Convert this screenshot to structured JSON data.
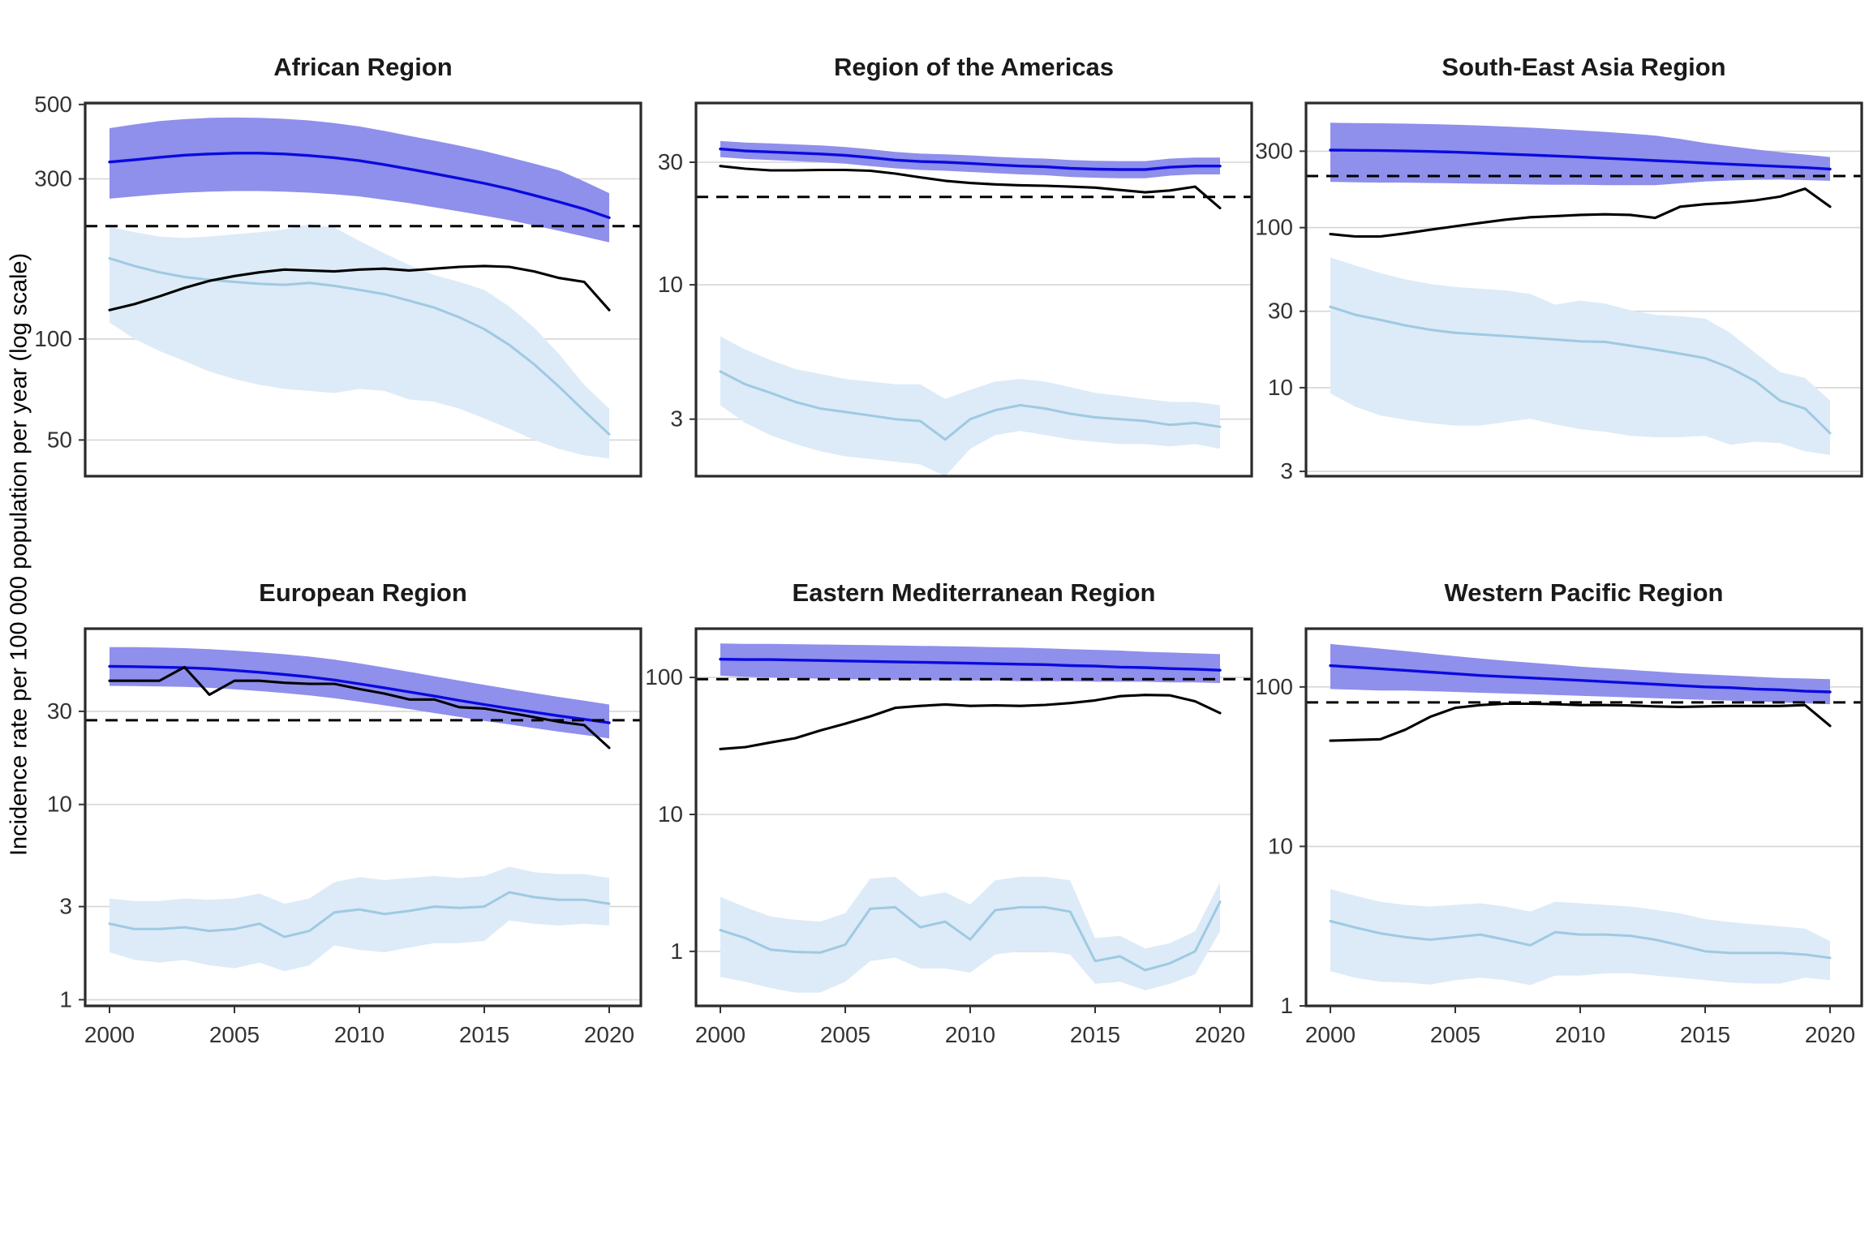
{
  "figure": {
    "ylabel": "Incidence rate per 100 000 population per year (log scale)"
  },
  "colors": {
    "blue_line": "#0A0ADF",
    "blue_band": "#8F8FEC",
    "lightblue_line": "#9FC9E2",
    "lightblue_band": "#DCEBF7",
    "black_line": "#000000",
    "dashed_line": "#000000",
    "gridline": "#D6D6D6",
    "panel_border": "#2A2A2A",
    "tick_text": "#333333"
  },
  "chart_data": {
    "type": "line",
    "x": [
      2000,
      2001,
      2002,
      2003,
      2004,
      2005,
      2006,
      2007,
      2008,
      2009,
      2010,
      2011,
      2012,
      2013,
      2014,
      2015,
      2016,
      2017,
      2018,
      2019,
      2020
    ],
    "x_ticks": [
      2000,
      2005,
      2010,
      2015,
      2020
    ],
    "ylabel": "Incidence rate per 100 000 population per year (log scale)",
    "log_scale": true,
    "legend": "none",
    "panels": [
      {
        "title": "African Region",
        "ylim": [
          39,
          505
        ],
        "yticks": [
          500,
          300,
          100,
          50
        ],
        "dashed_y": 217,
        "blue": [
          337,
          342,
          348,
          353,
          356,
          358,
          358,
          356,
          352,
          347,
          340,
          331,
          321,
          311,
          301,
          291,
          280,
          268,
          256,
          244,
          230
        ],
        "blue_upper": [
          425,
          436,
          446,
          452,
          456,
          457,
          456,
          453,
          448,
          440,
          430,
          417,
          403,
          390,
          377,
          363,
          348,
          333,
          318,
          295,
          272
        ],
        "blue_lower": [
          262,
          266,
          270,
          273,
          275,
          276,
          276,
          275,
          273,
          270,
          266,
          260,
          254,
          247,
          240,
          233,
          226,
          218,
          210,
          202,
          194
        ],
        "light": [
          174,
          165,
          158,
          153,
          150,
          148,
          146,
          145,
          147,
          144,
          140,
          136,
          130,
          124,
          116,
          107,
          96,
          84,
          72,
          61,
          52
        ],
        "light_upper": [
          216,
          208,
          202,
          200,
          202,
          205,
          208,
          212,
          220,
          215,
          196,
          180,
          166,
          155,
          148,
          140,
          125,
          108,
          90,
          73,
          62
        ],
        "light_lower": [
          112,
          100,
          92,
          86,
          80,
          76,
          73,
          71,
          70,
          69,
          71,
          70,
          66,
          65,
          62,
          58,
          54,
          50,
          47,
          45,
          44
        ],
        "black": [
          122,
          127,
          134,
          142,
          149,
          154,
          158,
          161,
          160,
          159,
          161,
          162,
          160,
          162,
          164,
          165,
          164,
          159,
          152,
          148,
          122
        ]
      },
      {
        "title": "Region of the Americas",
        "ylim": [
          1.8,
          51
        ],
        "yticks": [
          30,
          10,
          3
        ],
        "dashed_y": 22,
        "blue": [
          33.8,
          33.2,
          32.9,
          32.6,
          32.3,
          31.9,
          31.3,
          30.6,
          30.2,
          30.0,
          29.7,
          29.3,
          29.0,
          28.8,
          28.4,
          28.2,
          28.1,
          28.1,
          28.7,
          29.0,
          29.0
        ],
        "blue_upper": [
          36.3,
          35.8,
          35.5,
          35.2,
          34.9,
          34.4,
          33.7,
          32.9,
          32.4,
          32.2,
          31.9,
          31.5,
          31.2,
          31.0,
          30.6,
          30.4,
          30.3,
          30.3,
          31.0,
          31.3,
          31.3
        ],
        "blue_lower": [
          31.4,
          30.9,
          30.6,
          30.3,
          30.0,
          29.6,
          29.0,
          28.4,
          28.0,
          27.8,
          27.5,
          27.2,
          26.9,
          26.7,
          26.3,
          26.1,
          26.0,
          26.0,
          26.6,
          26.9,
          26.9
        ],
        "light": [
          4.6,
          4.1,
          3.8,
          3.5,
          3.3,
          3.2,
          3.1,
          3.0,
          2.95,
          2.5,
          3.0,
          3.25,
          3.4,
          3.3,
          3.15,
          3.05,
          3.0,
          2.95,
          2.85,
          2.9,
          2.8
        ],
        "light_upper": [
          6.3,
          5.6,
          5.1,
          4.7,
          4.5,
          4.3,
          4.2,
          4.1,
          4.1,
          3.6,
          3.9,
          4.2,
          4.3,
          4.2,
          4.0,
          3.8,
          3.7,
          3.6,
          3.5,
          3.5,
          3.4
        ],
        "light_lower": [
          3.4,
          2.9,
          2.6,
          2.4,
          2.25,
          2.15,
          2.1,
          2.05,
          2.0,
          1.8,
          2.3,
          2.6,
          2.7,
          2.6,
          2.5,
          2.45,
          2.4,
          2.4,
          2.35,
          2.4,
          2.3
        ],
        "black": [
          29.0,
          28.3,
          27.9,
          27.9,
          28.0,
          28.0,
          27.8,
          27.1,
          26.2,
          25.4,
          24.9,
          24.6,
          24.4,
          24.3,
          24.1,
          23.9,
          23.4,
          22.9,
          23.3,
          24.1,
          19.9
        ]
      },
      {
        "title": "South-East Asia Region",
        "ylim": [
          2.8,
          600
        ],
        "yticks": [
          300,
          100,
          30,
          10,
          3
        ],
        "dashed_y": 210,
        "blue": [
          305,
          304,
          303,
          301,
          299,
          296,
          292,
          288,
          284,
          280,
          276,
          271,
          267,
          262,
          258,
          253,
          249,
          245,
          241,
          237,
          232
        ],
        "blue_upper": [
          452,
          450,
          448,
          446,
          443,
          439,
          434,
          428,
          421,
          413,
          405,
          396,
          386,
          376,
          358,
          338,
          322,
          308,
          296,
          286,
          276
        ],
        "blue_lower": [
          193,
          192,
          191,
          191,
          190,
          189,
          188,
          187,
          186,
          185,
          185,
          184,
          184,
          184,
          189,
          194,
          197,
          199,
          200,
          198,
          196
        ],
        "light": [
          32,
          28.5,
          26.5,
          24.5,
          23,
          22,
          21.5,
          21,
          20.5,
          20,
          19.5,
          19.3,
          18.3,
          17.3,
          16.3,
          15.3,
          13.3,
          11,
          8.3,
          7.4,
          5.2
        ],
        "light_upper": [
          65,
          58,
          52,
          47.5,
          44.5,
          42.5,
          41.5,
          40.5,
          38.5,
          33,
          35,
          33.5,
          30.5,
          28.5,
          28,
          27,
          22,
          16.5,
          12.5,
          11.5,
          8.3
        ],
        "light_lower": [
          9.2,
          7.6,
          6.7,
          6.3,
          6.0,
          5.8,
          5.8,
          6.1,
          6.4,
          5.9,
          5.5,
          5.3,
          5.0,
          4.9,
          4.9,
          5.0,
          4.4,
          4.6,
          4.5,
          4.0,
          3.8
        ],
        "black": [
          91,
          88,
          88,
          92,
          97,
          102,
          107,
          112,
          116,
          118,
          120,
          121,
          120,
          115,
          135,
          140,
          143,
          148,
          156,
          175,
          135
        ]
      },
      {
        "title": "European Region",
        "ylim": [
          0.93,
          79.5
        ],
        "yticks": [
          30,
          10,
          3,
          1
        ],
        "dashed_y": 27,
        "blue": [
          51,
          50.8,
          50.5,
          50.2,
          49.6,
          48.6,
          47.5,
          46.3,
          45.0,
          43.4,
          41.5,
          39.6,
          37.7,
          35.9,
          34.1,
          32.5,
          31.0,
          29.7,
          28.4,
          27.3,
          26.2
        ],
        "blue_upper": [
          64,
          64,
          63.6,
          63.2,
          62.4,
          61.4,
          60.2,
          58.8,
          57.2,
          55.2,
          52.8,
          50.3,
          47.8,
          45.4,
          43.1,
          41.0,
          39.0,
          37.2,
          35.5,
          34.0,
          32.5
        ],
        "blue_lower": [
          40.5,
          40.4,
          40.2,
          40.0,
          39.6,
          38.9,
          38.1,
          37.2,
          36.2,
          35.0,
          33.6,
          32.2,
          30.8,
          29.4,
          28.1,
          26.8,
          25.7,
          24.6,
          23.6,
          22.7,
          21.8
        ],
        "light": [
          2.45,
          2.3,
          2.3,
          2.35,
          2.25,
          2.3,
          2.45,
          2.1,
          2.25,
          2.8,
          2.9,
          2.75,
          2.85,
          3.0,
          2.95,
          3.0,
          3.55,
          3.35,
          3.25,
          3.25,
          3.1
        ],
        "light_upper": [
          3.3,
          3.2,
          3.2,
          3.3,
          3.25,
          3.3,
          3.5,
          3.1,
          3.3,
          4.0,
          4.25,
          4.1,
          4.2,
          4.3,
          4.2,
          4.3,
          4.8,
          4.5,
          4.4,
          4.4,
          4.2
        ],
        "light_lower": [
          1.75,
          1.6,
          1.55,
          1.6,
          1.5,
          1.45,
          1.55,
          1.4,
          1.5,
          1.9,
          1.8,
          1.75,
          1.85,
          1.95,
          1.95,
          2.0,
          2.55,
          2.45,
          2.4,
          2.45,
          2.4
        ],
        "black": [
          43,
          43,
          43,
          50.5,
          36.5,
          43,
          43,
          42,
          41.5,
          41.5,
          39,
          37,
          34.5,
          34.5,
          31.5,
          31,
          29.5,
          28,
          26.5,
          25.5,
          19.5
        ]
      },
      {
        "title": "Eastern Mediterranean Region",
        "ylim": [
          0.4,
          227
        ],
        "yticks": [
          100,
          10,
          1
        ],
        "dashed_y": 97,
        "blue": [
          136,
          135,
          135,
          134,
          133,
          132,
          131,
          130,
          129,
          128,
          127,
          126,
          125,
          124,
          122,
          121,
          119,
          118,
          116,
          115,
          113
        ],
        "blue_upper": [
          177,
          176,
          176,
          175,
          174,
          173,
          172,
          171,
          170,
          169,
          168,
          166,
          165,
          163,
          161,
          159,
          157,
          154,
          152,
          150,
          148
        ],
        "blue_lower": [
          103,
          101,
          100,
          99,
          98,
          97,
          97,
          96,
          96,
          95,
          95,
          95,
          94,
          94,
          94,
          93,
          93,
          93,
          92,
          92,
          91
        ],
        "light": [
          1.43,
          1.25,
          1.03,
          0.99,
          0.98,
          1.12,
          2.05,
          2.1,
          1.5,
          1.65,
          1.22,
          2.0,
          2.1,
          2.1,
          1.95,
          0.85,
          0.92,
          0.73,
          0.82,
          1.0,
          2.3
        ],
        "light_upper": [
          2.5,
          2.1,
          1.8,
          1.7,
          1.65,
          1.9,
          3.4,
          3.5,
          2.5,
          2.7,
          2.2,
          3.3,
          3.5,
          3.5,
          3.3,
          1.25,
          1.3,
          1.05,
          1.15,
          1.4,
          3.2
        ],
        "light_lower": [
          0.65,
          0.6,
          0.54,
          0.5,
          0.5,
          0.6,
          0.85,
          0.9,
          0.75,
          0.75,
          0.7,
          0.95,
          1.0,
          1.0,
          0.95,
          0.58,
          0.6,
          0.52,
          0.58,
          0.68,
          1.4
        ],
        "black": [
          30,
          31,
          33.5,
          36,
          41,
          46,
          52,
          60,
          62,
          63.5,
          62,
          62.5,
          62,
          63,
          65,
          68,
          73,
          74.5,
          74,
          67,
          55
        ]
      },
      {
        "title": "Western Pacific Region",
        "ylim": [
          1.0,
          232
        ],
        "yticks": [
          100,
          10,
          1
        ],
        "dashed_y": 80,
        "blue": [
          136,
          133,
          130,
          127,
          124,
          121,
          118,
          116,
          114,
          112,
          110,
          108,
          106,
          104,
          102,
          100,
          99,
          97,
          96,
          94,
          93
        ],
        "blue_upper": [
          186,
          180,
          174,
          168,
          162,
          156,
          151,
          146,
          142,
          138,
          134,
          131,
          128,
          125,
          122,
          120,
          118,
          116,
          114,
          113,
          112
        ],
        "blue_lower": [
          97,
          96,
          95,
          95,
          94,
          93,
          92,
          91,
          90,
          89,
          88,
          87,
          86,
          85,
          84,
          83,
          82,
          81,
          80,
          79,
          78
        ],
        "light": [
          3.4,
          3.1,
          2.85,
          2.7,
          2.6,
          2.7,
          2.8,
          2.6,
          2.4,
          2.9,
          2.8,
          2.8,
          2.75,
          2.6,
          2.4,
          2.2,
          2.15,
          2.15,
          2.15,
          2.1,
          2.0
        ],
        "light_upper": [
          5.4,
          4.9,
          4.5,
          4.3,
          4.2,
          4.3,
          4.4,
          4.2,
          3.9,
          4.5,
          4.4,
          4.3,
          4.2,
          4.0,
          3.8,
          3.5,
          3.35,
          3.25,
          3.15,
          3.05,
          2.55
        ],
        "light_lower": [
          1.65,
          1.5,
          1.42,
          1.4,
          1.36,
          1.45,
          1.5,
          1.45,
          1.35,
          1.55,
          1.55,
          1.6,
          1.6,
          1.55,
          1.5,
          1.45,
          1.4,
          1.38,
          1.38,
          1.5,
          1.45
        ],
        "black": [
          46,
          46.5,
          47,
          54,
          65,
          74,
          77,
          78.5,
          78.5,
          78,
          77,
          77,
          76.5,
          75.5,
          75,
          75.5,
          76,
          76,
          76,
          77,
          57
        ]
      }
    ]
  }
}
